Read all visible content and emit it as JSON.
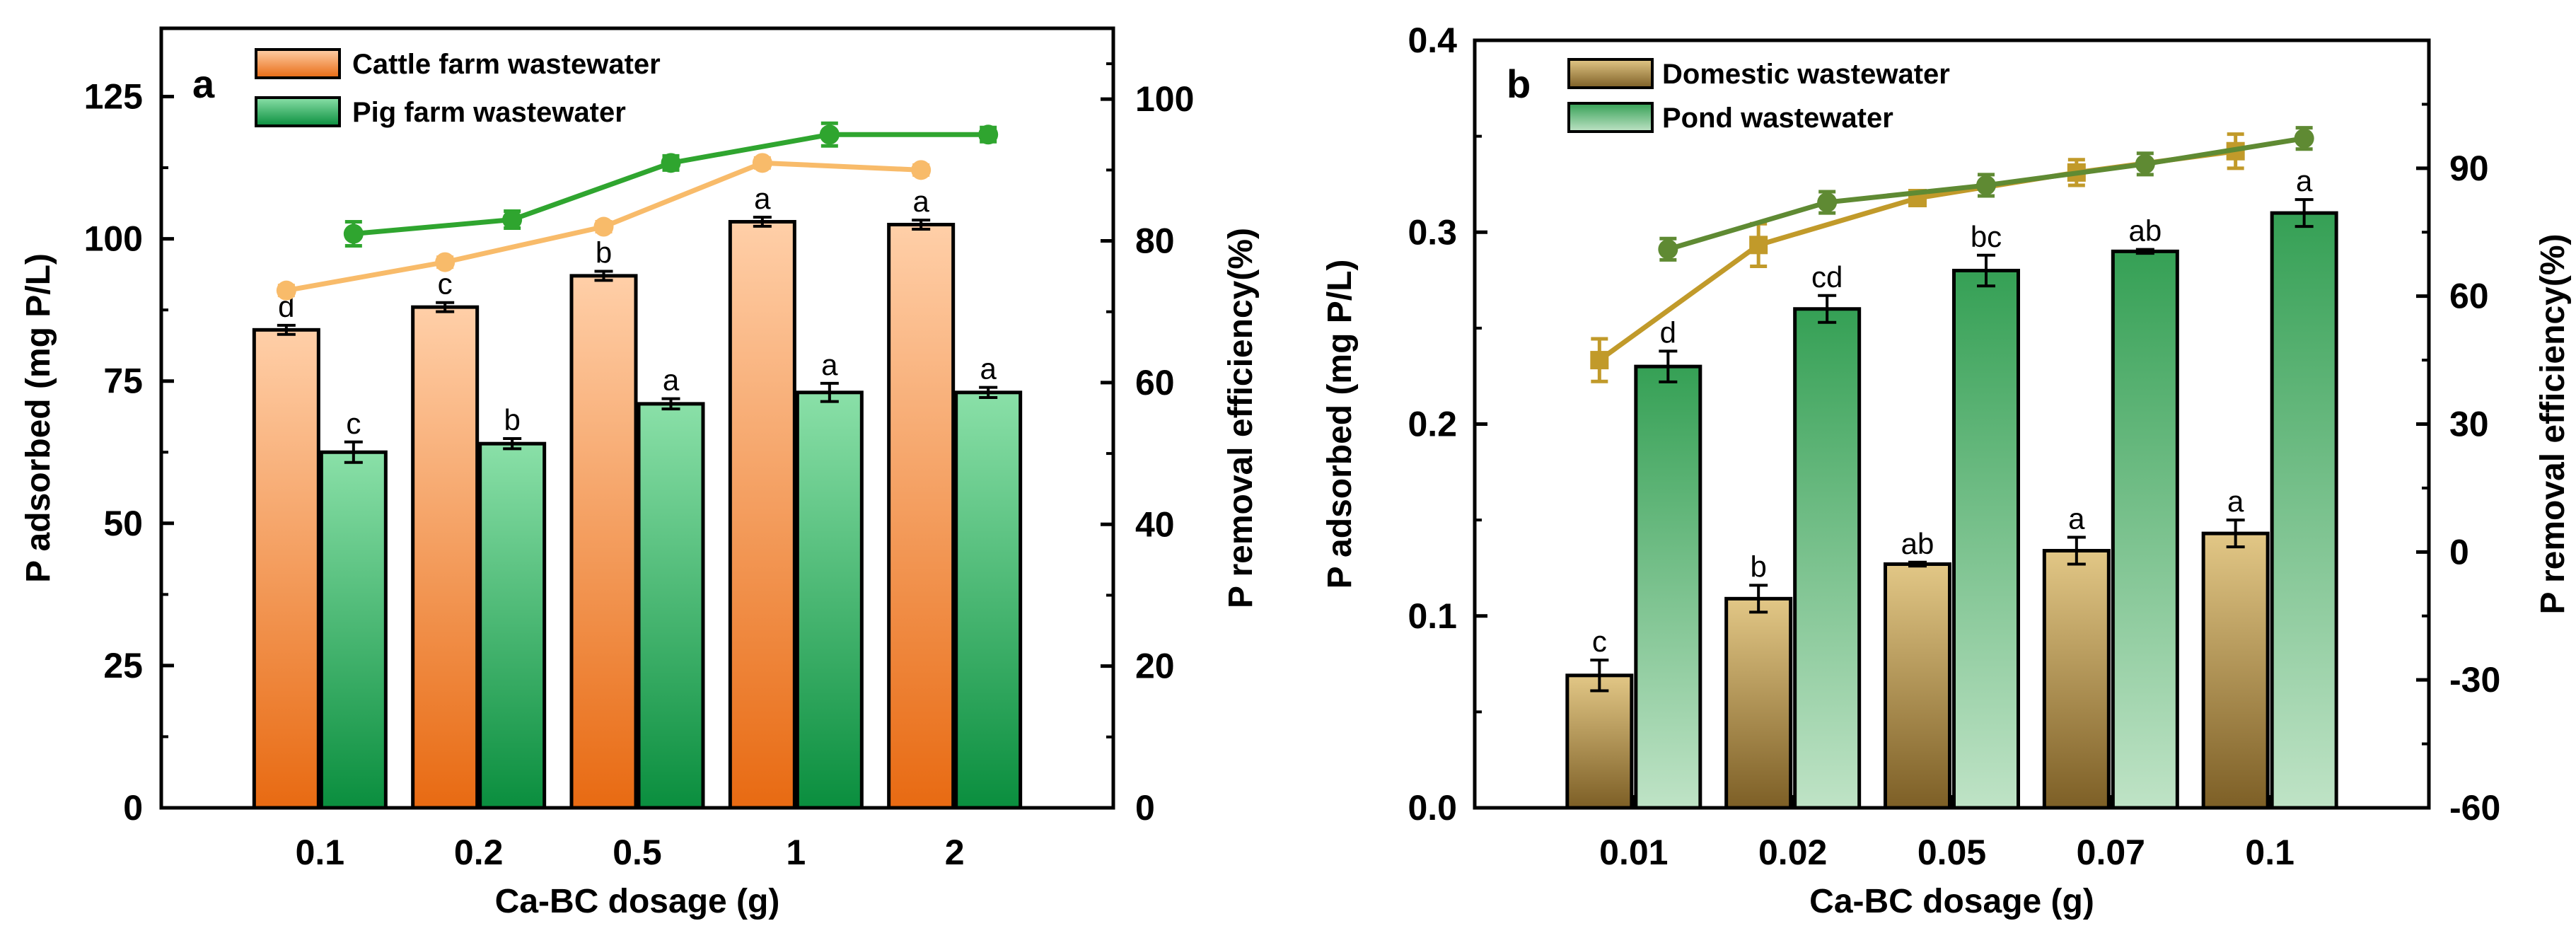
{
  "chart_data": [
    {
      "type": "bar",
      "panel_label": "a",
      "categories": [
        "0.1",
        "0.2",
        "0.5",
        "1",
        "2"
      ],
      "xlabel": "Ca-BC dosage (g)",
      "ylabel": "P adsorbed (mg P/L)",
      "ylim": [
        0,
        137
      ],
      "yticks": [
        0,
        25,
        50,
        75,
        100,
        125
      ],
      "ytick_labels": [
        "0",
        "25",
        "50",
        "75",
        "100",
        "125"
      ],
      "y2label": "P removal efficiency(%)",
      "y2lim": [
        0,
        110
      ],
      "y2ticks": [
        0,
        20,
        40,
        60,
        80,
        100
      ],
      "y2tick_labels": [
        "0",
        "20",
        "40",
        "60",
        "80",
        "100"
      ],
      "legend_position": "top-left",
      "series": [
        {
          "name": "Cattle farm wastewater",
          "values": [
            84,
            88,
            93.5,
            103,
            102.5
          ],
          "errors": [
            0.8,
            0.8,
            0.8,
            0.8,
            0.8
          ],
          "sig_labels": [
            "d",
            "c",
            "b",
            "a",
            "a"
          ],
          "gradient": [
            "#ffcfa8",
            "#e86a12"
          ],
          "line_values": [
            73,
            77,
            82,
            91,
            90
          ],
          "line_errors": [
            0.7,
            0.7,
            0.7,
            0.7,
            0.7
          ],
          "line_color": "#f8bb6a"
        },
        {
          "name": "Pig farm wastewater",
          "values": [
            62.5,
            64,
            71,
            73,
            73
          ],
          "errors": [
            1.8,
            0.9,
            0.9,
            1.6,
            0.9
          ],
          "sig_labels": [
            "c",
            "b",
            "a",
            "a",
            "a"
          ],
          "gradient": [
            "#8ae0a8",
            "#0a8e3e"
          ],
          "line_values": [
            81,
            83,
            91,
            95,
            95
          ],
          "line_errors": [
            1.7,
            1.2,
            1.0,
            1.6,
            1.0
          ],
          "line_color": "#2fa52f"
        }
      ]
    },
    {
      "type": "bar",
      "panel_label": "b",
      "categories": [
        "0.01",
        "0.02",
        "0.05",
        "0.07",
        "0.1"
      ],
      "xlabel": "Ca-BC dosage (g)",
      "ylabel": "P adsorbed (mg P/L)",
      "ylim": [
        0,
        0.4
      ],
      "yticks": [
        0,
        0.1,
        0.2,
        0.3,
        0.4
      ],
      "ytick_labels": [
        "0.0",
        "0.1",
        "0.2",
        "0.3",
        "0.4"
      ],
      "y2label": "P removal efficiency(%)",
      "y2lim": [
        -60,
        120
      ],
      "y2ticks": [
        -60,
        -30,
        0,
        30,
        60,
        90
      ],
      "y2tick_labels": [
        "-60",
        "-30",
        "0",
        "30",
        "60",
        "90"
      ],
      "legend_position": "top-left",
      "series": [
        {
          "name": "Domestic wastewater",
          "values": [
            0.069,
            0.109,
            0.127,
            0.134,
            0.143
          ],
          "errors": [
            0.008,
            0.007,
            0.001,
            0.007,
            0.007
          ],
          "sig_labels": [
            "c",
            "b",
            "ab",
            "a",
            "a"
          ],
          "gradient": [
            "#e2c786",
            "#7d5f26"
          ],
          "line_values": [
            45,
            72,
            83,
            89,
            94
          ],
          "line_errors": [
            5,
            5,
            1.5,
            3,
            4
          ],
          "line_color": "#c19a2a"
        },
        {
          "name": "Pond wastewater",
          "values": [
            0.23,
            0.26,
            0.28,
            0.29,
            0.31
          ],
          "errors": [
            0.008,
            0.007,
            0.008,
            0.001,
            0.007
          ],
          "sig_labels": [
            "d",
            "cd",
            "bc",
            "ab",
            "a"
          ],
          "gradient": [
            "#35a055",
            "#bfe3c6"
          ],
          "line_values": [
            71,
            82,
            86,
            91,
            97
          ],
          "line_errors": [
            2.5,
            2.5,
            2.5,
            2.5,
            2.5
          ],
          "line_color": "#5f8a33"
        }
      ]
    }
  ]
}
